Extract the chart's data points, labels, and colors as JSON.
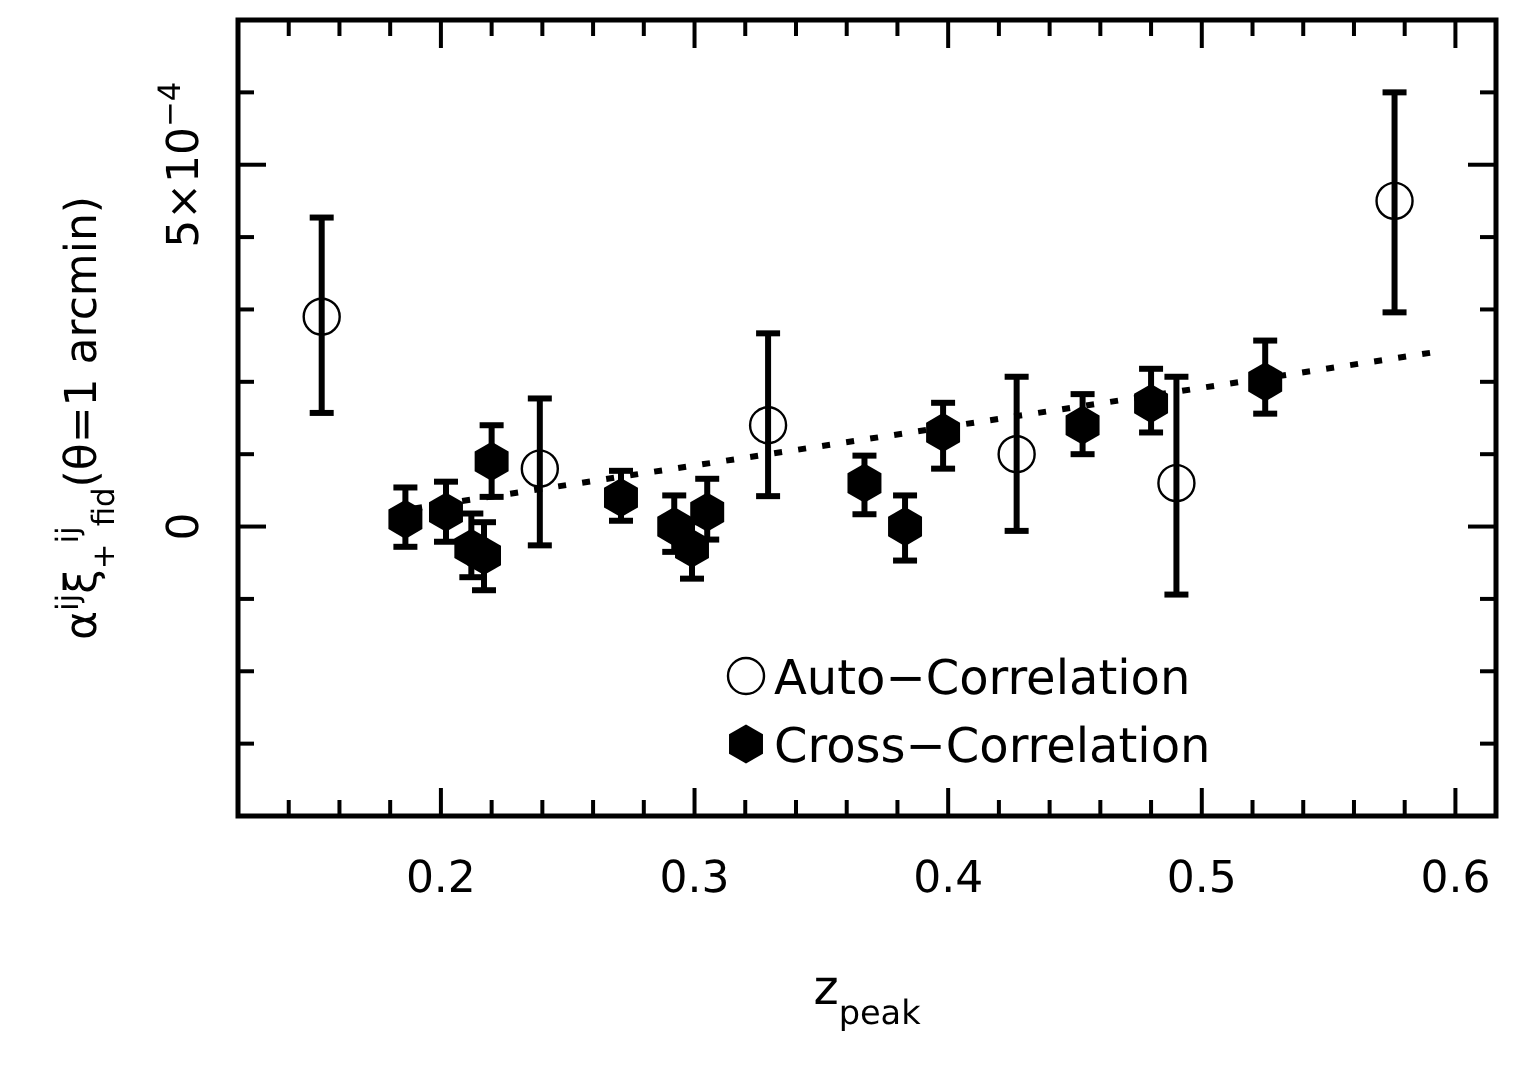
{
  "chart_data": {
    "type": "scatter",
    "xlabel": "z$_{peak}$",
    "ylabel": "α$^{ij}$ξ$_{+}$$^{ij}$$_{fid}$(θ=1  arcmin)",
    "xlim": [
      0.12,
      0.616
    ],
    "ylim": [
      -0.0004,
      0.0007
    ],
    "xticks": [
      {
        "value": 0.14,
        "label": null
      },
      {
        "value": 0.16,
        "label": null
      },
      {
        "value": 0.18,
        "label": null
      },
      0.2,
      {
        "value": 0.22,
        "label": null
      },
      {
        "value": 0.24,
        "label": null
      },
      {
        "value": 0.26,
        "label": null
      },
      {
        "value": 0.28,
        "label": null
      },
      0.3,
      {
        "value": 0.32,
        "label": null
      },
      {
        "value": 0.34,
        "label": null
      },
      {
        "value": 0.36,
        "label": null
      },
      {
        "value": 0.38,
        "label": null
      },
      0.4,
      {
        "value": 0.42,
        "label": null
      },
      {
        "value": 0.44,
        "label": null
      },
      {
        "value": 0.46,
        "label": null
      },
      {
        "value": 0.48,
        "label": null
      },
      0.5,
      {
        "value": 0.52,
        "label": null
      },
      {
        "value": 0.54,
        "label": null
      },
      {
        "value": 0.56,
        "label": null
      },
      {
        "value": 0.58,
        "label": null
      },
      0.6
    ],
    "yticks": [
      {
        "value": -0.0003,
        "label": null
      },
      {
        "value": -0.0002,
        "label": null
      },
      {
        "value": -0.0001,
        "label": null
      },
      0,
      {
        "value": 0.0001,
        "label": null
      },
      {
        "value": 0.0002,
        "label": null
      },
      {
        "value": 0.0003,
        "label": null
      },
      {
        "value": 0.0004,
        "label": null
      },
      {
        "value": 0.0005,
        "label": "5×10$^{−4}$"
      },
      {
        "value": 0.0006,
        "label": null
      }
    ],
    "grid": false,
    "legend": "bottom right",
    "series": [
      {
        "name": "Auto−Correlation",
        "color": "#000000",
        "marker": "circle",
        "x": [
          0.153,
          0.239,
          0.329,
          0.427,
          0.49,
          0.576
        ],
        "values": [
          0.00029,
          8e-05,
          0.00014,
          0.0001,
          6e-05,
          0.00045
        ],
        "errors": [
          [
            0.000157,
            0.000427
          ],
          [
            -2.6e-05,
            0.000177
          ],
          [
            4.2e-05,
            0.000267
          ],
          [
            -6e-06,
            0.000207
          ],
          [
            -9.4e-05,
            0.000207
          ],
          [
            0.000296,
            0.0006
          ]
        ]
      },
      {
        "name": "Cross−Correlation",
        "color": "#000000",
        "x": [
          0.186,
          0.202,
          0.212,
          0.217,
          0.22,
          0.271,
          0.292,
          0.299,
          0.305,
          0.367,
          0.383,
          0.398,
          0.453,
          0.48,
          0.525
        ],
        "values": [
          1e-05,
          2e-05,
          -3e-05,
          -4e-05,
          9e-05,
          4e-05,
          0,
          -3e-05,
          2e-05,
          6e-05,
          0,
          0.00013,
          0.00014,
          0.00017,
          0.0002
        ],
        "errors": [
          [
            -2.8e-05,
            5.4e-05
          ],
          [
            -2.1e-05,
            6.2e-05
          ],
          [
            -7e-05,
            1.8e-05
          ],
          [
            -8.8e-05,
            6e-06
          ],
          [
            4.1e-05,
            0.00014
          ],
          [
            8e-06,
            7.7e-05
          ],
          [
            -3.5e-05,
            4.3e-05
          ],
          [
            -7.2e-05,
            6e-06
          ],
          [
            -1.8e-05,
            6.6e-05
          ],
          [
            1.7e-05,
            9.8e-05
          ],
          [
            -4.7e-05,
            4.3e-05
          ],
          [
            8e-05,
            0.000171
          ],
          [
            0.0001,
            0.000183
          ],
          [
            0.00013,
            0.000218
          ],
          [
            0.000156,
            0.000257
          ]
        ]
      },
      {
        "type": "line",
        "color": "#000000",
        "marker": "none",
        "line_style": "dotted",
        "x": [
          0.18,
          0.59
        ],
        "values": [
          2e-05,
          0.00024
        ]
      }
    ]
  }
}
